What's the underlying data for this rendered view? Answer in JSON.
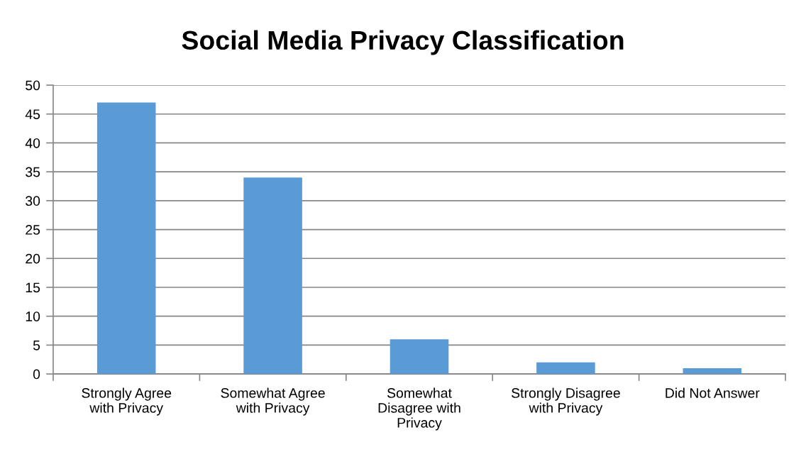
{
  "chart_data": {
    "type": "bar",
    "title": "Social Media Privacy Classification",
    "categories": [
      "Strongly Agree\nwith Privacy",
      "Somewhat Agree\nwith Privacy",
      "Somewhat\nDisagree with\nPrivacy",
      "Strongly Disagree\nwith Privacy",
      "Did Not Answer"
    ],
    "values": [
      47,
      34,
      6,
      2,
      1
    ],
    "color": "#5b9bd5",
    "ylim": [
      0,
      50
    ],
    "yticks": [
      0,
      5,
      10,
      15,
      20,
      25,
      30,
      35,
      40,
      45,
      50
    ],
    "grid": "y"
  }
}
